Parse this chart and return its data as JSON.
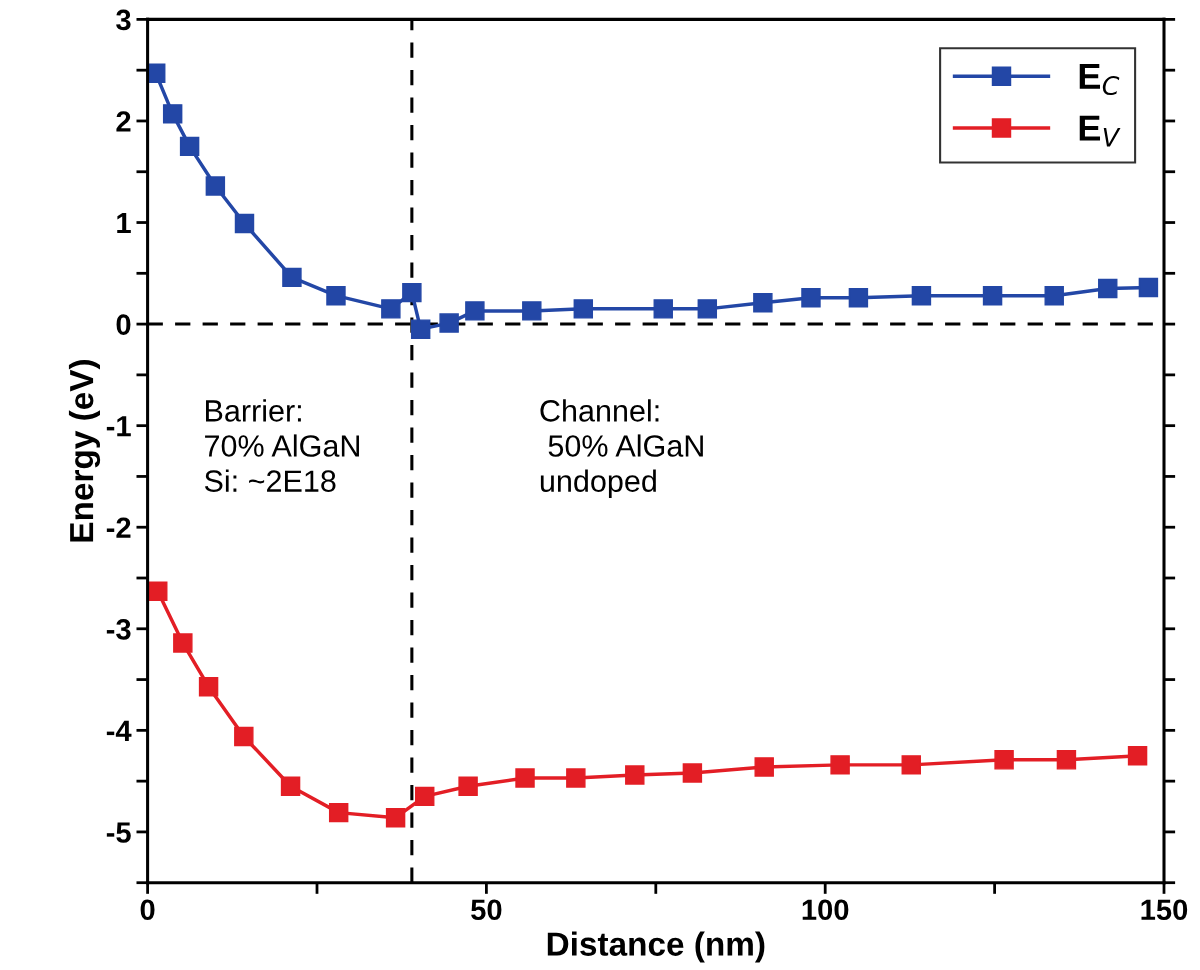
{
  "chart_data": {
    "type": "line",
    "xlabel": "Distance (nm)",
    "ylabel": "Energy (eV)",
    "xlim": [
      0,
      150
    ],
    "xticks": [
      0,
      {
        "value": 25,
        "label": null
      },
      50,
      {
        "value": 75,
        "label": null
      },
      100,
      {
        "value": 125,
        "label": null
      },
      150
    ],
    "ylim": [
      -5.5,
      3
    ],
    "yticks": [
      {
        "value": -5.5,
        "label": null
      },
      -5,
      {
        "value": -4.5,
        "label": null
      },
      -4,
      {
        "value": -3.5,
        "label": null
      },
      -3,
      {
        "value": -2.5,
        "label": null
      },
      -2,
      {
        "value": -1.5,
        "label": null
      },
      -1,
      {
        "value": -0.5,
        "label": null
      },
      0,
      {
        "value": 0.5,
        "label": null
      },
      1,
      {
        "value": 1.5,
        "label": null
      },
      2,
      {
        "value": 2.5,
        "label": null
      },
      3
    ],
    "grid": false,
    "legend": "top right",
    "marker": "square",
    "line_style": "solid",
    "series": [
      {
        "name": "E$_{C}$",
        "color": "#2347a6",
        "x": [
          1.2,
          3.7,
          6.2,
          10.0,
          14.3,
          21.3,
          27.8,
          35.9,
          39.0,
          40.3,
          44.5,
          48.3,
          56.7,
          64.3,
          76.1,
          82.6,
          90.8,
          97.9,
          104.9,
          114.2,
          124.7,
          133.8,
          141.7,
          147.7
        ],
        "values": [
          2.47,
          2.07,
          1.75,
          1.36,
          0.99,
          0.46,
          0.28,
          0.15,
          0.31,
          -0.05,
          0.01,
          0.13,
          0.13,
          0.15,
          0.15,
          0.15,
          0.21,
          0.26,
          0.26,
          0.28,
          0.28,
          0.28,
          0.35,
          0.36
        ]
      },
      {
        "name": "E$_{V}$",
        "color": "#e31e25",
        "x": [
          1.5,
          5.2,
          9.0,
          14.2,
          21.1,
          28.2,
          36.6,
          40.9,
          47.3,
          55.7,
          63.2,
          71.9,
          80.4,
          91.0,
          102.2,
          112.7,
          126.4,
          135.6,
          146.1
        ],
        "values": [
          -2.63,
          -3.14,
          -3.57,
          -4.06,
          -4.55,
          -4.81,
          -4.86,
          -4.65,
          -4.55,
          -4.47,
          -4.47,
          -4.44,
          -4.42,
          -4.36,
          -4.34,
          -4.34,
          -4.29,
          -4.29,
          -4.25
        ]
      }
    ],
    "ref_lines": [
      {
        "axis": "x",
        "value": 39,
        "color": "#000000",
        "line_style": "dashed"
      },
      {
        "axis": "y",
        "value": 0,
        "color": "#000000",
        "line_style": "dashed"
      }
    ],
    "annotations": [
      "Barrier:\n70% AlGaN\nSi: ~2E18",
      "Channel:\n 50% AlGaN\nundoped"
    ]
  }
}
